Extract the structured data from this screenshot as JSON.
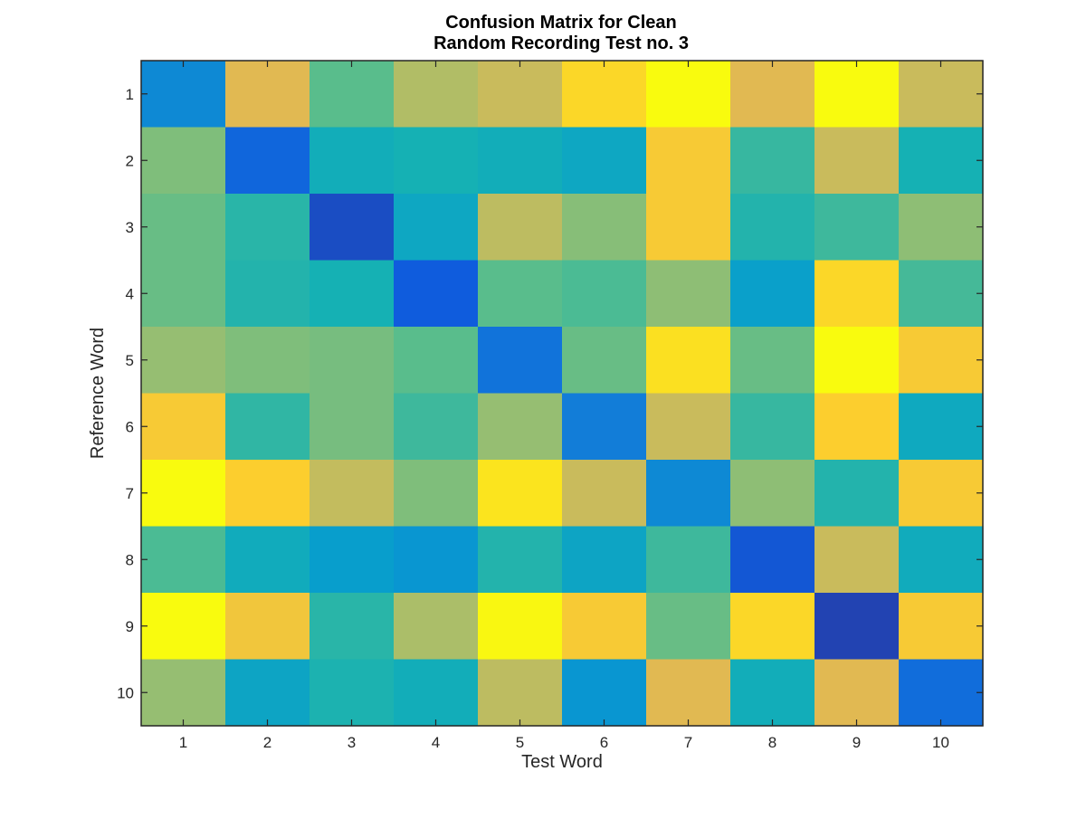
{
  "chart_data": {
    "type": "heatmap",
    "title_lines": [
      "Confusion Matrix for Clean",
      "Random Recording Test no. 3"
    ],
    "xlabel": "Test Word",
    "ylabel": "Reference Word",
    "x_ticks": [
      "1",
      "2",
      "3",
      "4",
      "5",
      "6",
      "7",
      "8",
      "9",
      "10"
    ],
    "y_ticks": [
      "1",
      "2",
      "3",
      "4",
      "5",
      "6",
      "7",
      "8",
      "9",
      "10"
    ],
    "colormap": "parula",
    "grid": false,
    "values": [
      [
        0.24,
        0.7,
        0.5,
        0.62,
        0.66,
        0.82,
        0.92,
        0.7,
        1.0,
        0.66
      ],
      [
        0.55,
        0.13,
        0.38,
        0.4,
        0.38,
        0.35,
        0.78,
        0.45,
        0.66,
        0.4
      ],
      [
        0.52,
        0.43,
        0.07,
        0.35,
        0.64,
        0.56,
        0.78,
        0.42,
        0.46,
        0.57
      ],
      [
        0.52,
        0.42,
        0.4,
        0.1,
        0.5,
        0.48,
        0.57,
        0.32,
        0.82,
        0.47
      ],
      [
        0.58,
        0.55,
        0.54,
        0.5,
        0.17,
        0.52,
        0.84,
        0.52,
        0.9,
        0.78
      ],
      [
        0.78,
        0.44,
        0.54,
        0.46,
        0.58,
        0.2,
        0.66,
        0.45,
        0.8,
        0.36
      ],
      [
        0.9,
        0.8,
        0.65,
        0.55,
        0.85,
        0.66,
        0.24,
        0.57,
        0.42,
        0.78
      ],
      [
        0.48,
        0.37,
        0.31,
        0.28,
        0.42,
        0.34,
        0.46,
        0.09,
        0.66,
        0.37
      ],
      [
        0.92,
        0.76,
        0.43,
        0.61,
        0.89,
        0.78,
        0.52,
        0.82,
        0.05,
        0.78
      ],
      [
        0.58,
        0.34,
        0.41,
        0.38,
        0.64,
        0.28,
        0.7,
        0.38,
        0.7,
        0.15
      ]
    ]
  }
}
